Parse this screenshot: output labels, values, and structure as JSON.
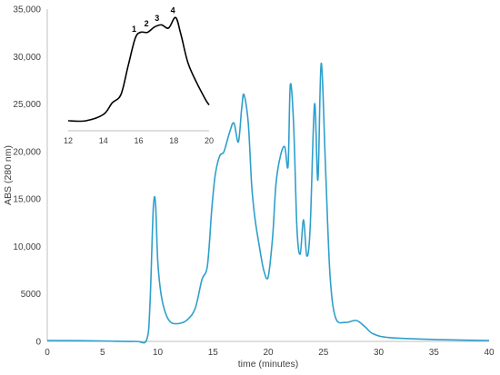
{
  "chart_data": [
    {
      "type": "line",
      "title": "",
      "xlabel": "time (minutes)",
      "ylabel": "ABS (280 nm)",
      "xlim": [
        0,
        40
      ],
      "ylim": [
        0,
        35000
      ],
      "x_ticks": [
        0,
        5,
        10,
        15,
        20,
        25,
        30,
        35,
        40
      ],
      "y_ticks": [
        0,
        5000,
        10000,
        15000,
        20000,
        25000,
        30000,
        35000
      ],
      "x_tick_labels": [
        "0",
        "5",
        "10",
        "15",
        "20",
        "25",
        "30",
        "35",
        "40"
      ],
      "y_tick_labels": [
        "0",
        "5000",
        "10,000",
        "15,000",
        "20,000",
        "25,000",
        "30,000",
        "35,000"
      ],
      "grid": false,
      "legend": "none",
      "color": "#2e9fcc",
      "series": [
        {
          "x": [
            0,
            5,
            8,
            9.0,
            9.3,
            9.6,
            9.8,
            10.0,
            10.3,
            10.7,
            11.2,
            12.0,
            12.7,
            13.4,
            14.0,
            14.5,
            14.9,
            15.2,
            15.6,
            16.0,
            16.5,
            16.9,
            17.3,
            17.6,
            17.8,
            18.2,
            18.5,
            18.8,
            19.2,
            19.6,
            20.0,
            20.4,
            20.7,
            21.1,
            21.5,
            21.8,
            22.0,
            22.3,
            22.6,
            22.9,
            23.2,
            23.5,
            23.8,
            24.2,
            24.5,
            24.8,
            25.2,
            25.6,
            26.1,
            27.0,
            28.0,
            28.8,
            29.5,
            31.0,
            35.0,
            40.0
          ],
          "y": [
            100,
            50,
            0,
            200,
            4000,
            14000,
            14500,
            8500,
            5000,
            3000,
            2000,
            1900,
            2300,
            3500,
            6500,
            8000,
            14000,
            17500,
            19500,
            20000,
            22000,
            23000,
            21000,
            24500,
            26000,
            23000,
            16500,
            13000,
            10000,
            7500,
            6800,
            11000,
            16500,
            19500,
            20500,
            18500,
            27000,
            23000,
            12000,
            9200,
            12800,
            9000,
            12000,
            25000,
            17000,
            29300,
            18000,
            7000,
            2500,
            2000,
            2200,
            1500,
            800,
            400,
            200,
            100
          ]
        }
      ]
    },
    {
      "type": "line",
      "title": "",
      "xlabel": "",
      "ylabel": "",
      "xlim": [
        12,
        20
      ],
      "x_ticks": [
        12,
        14,
        16,
        18,
        20
      ],
      "x_tick_labels": [
        "12",
        "14",
        "16",
        "18",
        "20"
      ],
      "grid": false,
      "legend": "none",
      "color": "#000000",
      "annotations": [
        "1",
        "2",
        "3",
        "4"
      ],
      "annotation_x": [
        15.9,
        16.6,
        17.2,
        18.1
      ],
      "series": [
        {
          "x": [
            12.0,
            13.0,
            14.0,
            14.5,
            15.0,
            15.4,
            15.8,
            16.1,
            16.5,
            16.9,
            17.3,
            17.7,
            18.1,
            18.4,
            18.8,
            19.3,
            19.8,
            20.0
          ],
          "y": [
            0.0,
            0.0,
            0.06,
            0.17,
            0.25,
            0.52,
            0.78,
            0.84,
            0.84,
            0.89,
            0.91,
            0.88,
            0.98,
            0.82,
            0.55,
            0.36,
            0.2,
            0.15
          ]
        }
      ]
    }
  ]
}
